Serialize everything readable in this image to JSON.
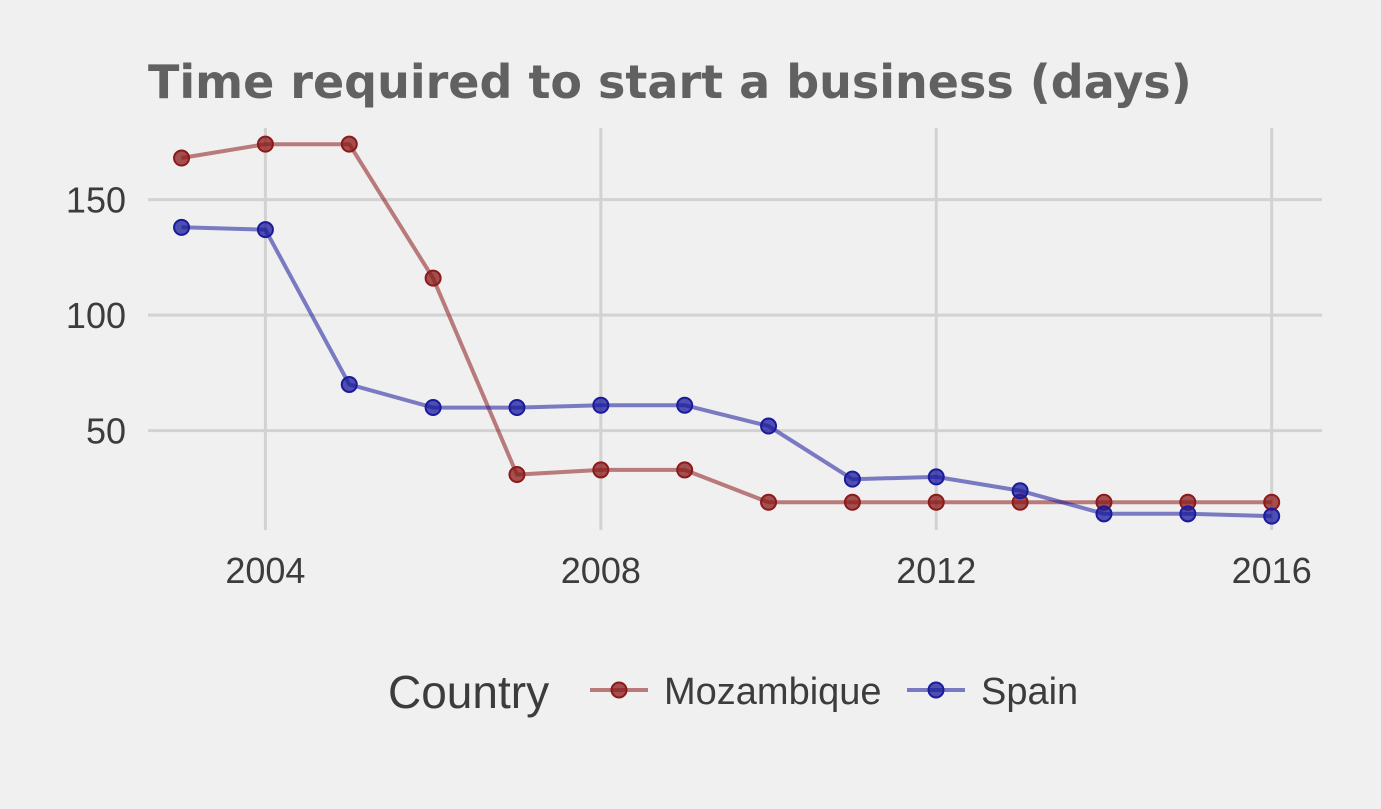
{
  "chart_data": {
    "type": "line",
    "title": "Time required to start a business (days)",
    "xlabel": "",
    "ylabel": "",
    "x": [
      2003,
      2004,
      2005,
      2006,
      2007,
      2008,
      2009,
      2010,
      2011,
      2012,
      2013,
      2014,
      2015,
      2016
    ],
    "xlim": [
      2002.6,
      2016.6
    ],
    "ylim": [
      7,
      181
    ],
    "x_ticks": [
      2004,
      2008,
      2012,
      2016
    ],
    "y_ticks": [
      50,
      100,
      150
    ],
    "x_tick_labels": [
      "2004",
      "2008",
      "2012",
      "2016"
    ],
    "y_tick_labels": [
      "50",
      "100",
      "150"
    ],
    "grid": true,
    "legend": {
      "title": "Country",
      "position": "bottom"
    },
    "series": [
      {
        "name": "Mozambique",
        "color": "#8b1a1a",
        "values": [
          168,
          174,
          174,
          116,
          31,
          33,
          33,
          19,
          19,
          19,
          19,
          19,
          19,
          19
        ]
      },
      {
        "name": "Spain",
        "color": "#1a1a9c",
        "values": [
          138,
          137,
          70,
          60,
          60,
          61,
          61,
          52,
          29,
          30,
          24,
          14,
          14,
          13
        ]
      }
    ]
  }
}
